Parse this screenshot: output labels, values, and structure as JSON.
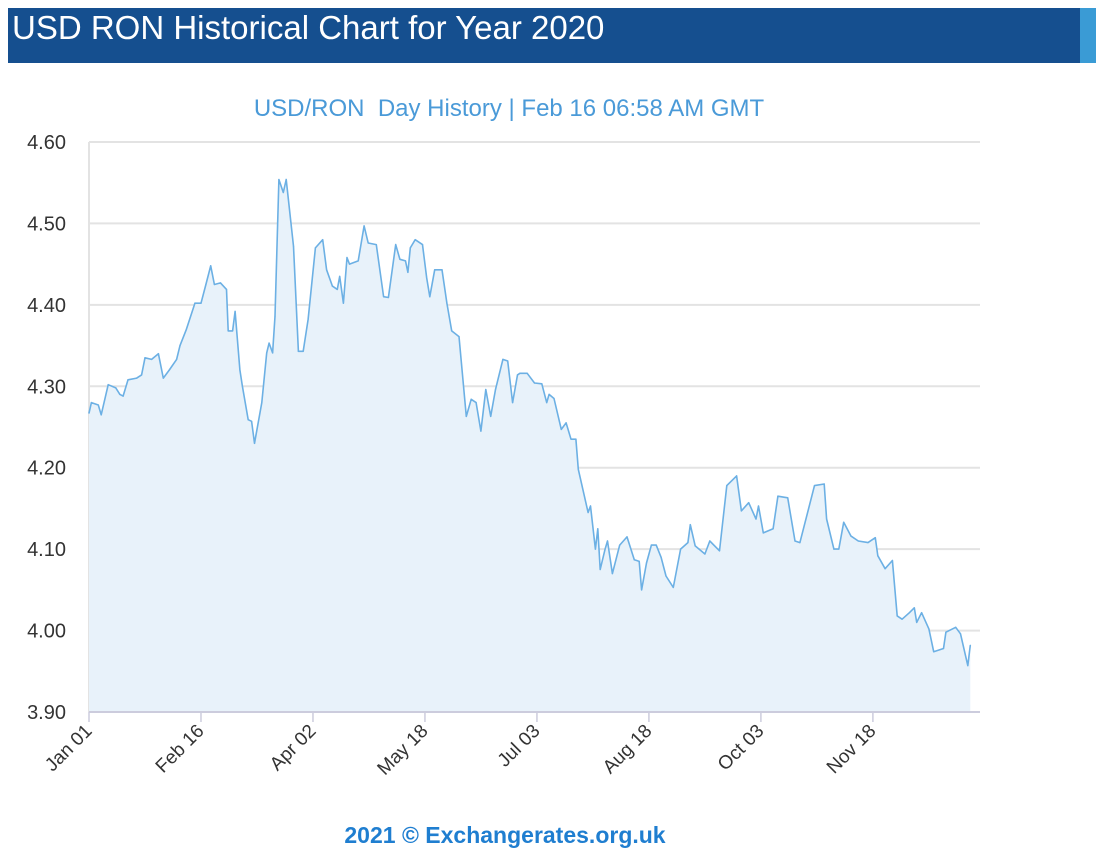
{
  "header": {
    "title": "USD RON Historical Chart for Year 2020"
  },
  "footer": {
    "text": "2021 © Exchangerates.org.uk"
  },
  "colors": {
    "header": "#154f8f",
    "header_accent": "#3a9bd5",
    "line": "#6cb0e4",
    "fill": "#e8f2fa",
    "title": "#4a9ad8",
    "footer": "#1f7ed0"
  },
  "chart_data": {
    "type": "area",
    "title": "USD/RON  Day History | Feb 16 06:58 AM GMT",
    "xlabel": "",
    "ylabel": "",
    "x_unit": "day of year 2020 (0 = Jan 01)",
    "xlim": [
      0,
      366
    ],
    "ylim": [
      3.9,
      4.6
    ],
    "yticks": [
      {
        "value": 3.9,
        "label": "3.90"
      },
      {
        "value": 4.0,
        "label": "4.00"
      },
      {
        "value": 4.1,
        "label": "4.10"
      },
      {
        "value": 4.2,
        "label": "4.20"
      },
      {
        "value": 4.3,
        "label": "4.30"
      },
      {
        "value": 4.4,
        "label": "4.40"
      },
      {
        "value": 4.5,
        "label": "4.50"
      },
      {
        "value": 4.6,
        "label": "4.60"
      }
    ],
    "xticks": [
      {
        "value": 0,
        "label": "Jan 01"
      },
      {
        "value": 46,
        "label": "Feb 16"
      },
      {
        "value": 92,
        "label": "Apr 02"
      },
      {
        "value": 138,
        "label": "May 18"
      },
      {
        "value": 184,
        "label": "Jul 03"
      },
      {
        "value": 230,
        "label": "Aug 18"
      },
      {
        "value": 276,
        "label": "Oct 03"
      },
      {
        "value": 322,
        "label": "Nov 18"
      }
    ],
    "grid": true,
    "legend": "none",
    "series": [
      {
        "name": "USD/RON",
        "points": [
          [
            0,
            4.267
          ],
          [
            1,
            4.28
          ],
          [
            3.8,
            4.277
          ],
          [
            5,
            4.265
          ],
          [
            7.9,
            4.302
          ],
          [
            11,
            4.298
          ],
          [
            12.7,
            4.29
          ],
          [
            14,
            4.288
          ],
          [
            16,
            4.308
          ],
          [
            19.6,
            4.31
          ],
          [
            21.6,
            4.314
          ],
          [
            23,
            4.335
          ],
          [
            25.7,
            4.333
          ],
          [
            28.5,
            4.34
          ],
          [
            30.5,
            4.31
          ],
          [
            33,
            4.32
          ],
          [
            36,
            4.333
          ],
          [
            37.4,
            4.35
          ],
          [
            40,
            4.37
          ],
          [
            43.5,
            4.402
          ],
          [
            46,
            4.402
          ],
          [
            48,
            4.425
          ],
          [
            50,
            4.448
          ],
          [
            51.5,
            4.425
          ],
          [
            54,
            4.427
          ],
          [
            56.5,
            4.419
          ],
          [
            57.2,
            4.368
          ],
          [
            59,
            4.368
          ],
          [
            60,
            4.392
          ],
          [
            62,
            4.32
          ],
          [
            63,
            4.3
          ],
          [
            65.4,
            4.259
          ],
          [
            66.8,
            4.257
          ],
          [
            68,
            4.23
          ],
          [
            71,
            4.28
          ],
          [
            73,
            4.341
          ],
          [
            74,
            4.353
          ],
          [
            75.4,
            4.341
          ],
          [
            76.4,
            4.386
          ],
          [
            78,
            4.554
          ],
          [
            79.8,
            4.538
          ],
          [
            81,
            4.554
          ],
          [
            84,
            4.472
          ],
          [
            86,
            4.343
          ],
          [
            88,
            4.343
          ],
          [
            90,
            4.382
          ],
          [
            93,
            4.47
          ],
          [
            96,
            4.48
          ],
          [
            97.6,
            4.443
          ],
          [
            100,
            4.423
          ],
          [
            102,
            4.419
          ],
          [
            103,
            4.435
          ],
          [
            104.5,
            4.402
          ],
          [
            106,
            4.458
          ],
          [
            107,
            4.45
          ],
          [
            110.6,
            4.454
          ],
          [
            113,
            4.497
          ],
          [
            114.7,
            4.476
          ],
          [
            118,
            4.474
          ],
          [
            121,
            4.41
          ],
          [
            123,
            4.409
          ],
          [
            126,
            4.474
          ],
          [
            127.7,
            4.456
          ],
          [
            130,
            4.454
          ],
          [
            131,
            4.44
          ],
          [
            132,
            4.47
          ],
          [
            134,
            4.48
          ],
          [
            137,
            4.474
          ],
          [
            138.7,
            4.433
          ],
          [
            140,
            4.41
          ],
          [
            142,
            4.443
          ],
          [
            145,
            4.443
          ],
          [
            147,
            4.402
          ],
          [
            149,
            4.368
          ],
          [
            152,
            4.361
          ],
          [
            155,
            4.263
          ],
          [
            157,
            4.284
          ],
          [
            159,
            4.28
          ],
          [
            161,
            4.245
          ],
          [
            163,
            4.296
          ],
          [
            165,
            4.263
          ],
          [
            167,
            4.296
          ],
          [
            170,
            4.333
          ],
          [
            172,
            4.331
          ],
          [
            174,
            4.28
          ],
          [
            176,
            4.314
          ],
          [
            177,
            4.316
          ],
          [
            180,
            4.316
          ],
          [
            183,
            4.304
          ],
          [
            186,
            4.303
          ],
          [
            188,
            4.28
          ],
          [
            189,
            4.29
          ],
          [
            191,
            4.285
          ],
          [
            194,
            4.247
          ],
          [
            196,
            4.255
          ],
          [
            198,
            4.235
          ],
          [
            200,
            4.235
          ],
          [
            201,
            4.198
          ],
          [
            205,
            4.145
          ],
          [
            206,
            4.153
          ],
          [
            208,
            4.1
          ],
          [
            209,
            4.125
          ],
          [
            210,
            4.075
          ],
          [
            212,
            4.1
          ],
          [
            213,
            4.11
          ],
          [
            215,
            4.07
          ],
          [
            218,
            4.105
          ],
          [
            221,
            4.115
          ],
          [
            224,
            4.087
          ],
          [
            226,
            4.085
          ],
          [
            227,
            4.05
          ],
          [
            229,
            4.083
          ],
          [
            231,
            4.105
          ],
          [
            233,
            4.105
          ],
          [
            235,
            4.09
          ],
          [
            237,
            4.067
          ],
          [
            240,
            4.053
          ],
          [
            243,
            4.1
          ],
          [
            246,
            4.108
          ],
          [
            247,
            4.13
          ],
          [
            249,
            4.104
          ],
          [
            253,
            4.094
          ],
          [
            255,
            4.11
          ],
          [
            259,
            4.098
          ],
          [
            262,
            4.178
          ],
          [
            266,
            4.19
          ],
          [
            268,
            4.147
          ],
          [
            271,
            4.157
          ],
          [
            274,
            4.137
          ],
          [
            275,
            4.153
          ],
          [
            277,
            4.12
          ],
          [
            281,
            4.125
          ],
          [
            283,
            4.165
          ],
          [
            287,
            4.163
          ],
          [
            290,
            4.11
          ],
          [
            292,
            4.108
          ],
          [
            298,
            4.178
          ],
          [
            302,
            4.18
          ],
          [
            303,
            4.137
          ],
          [
            306,
            4.1
          ],
          [
            308,
            4.1
          ],
          [
            310,
            4.133
          ],
          [
            313,
            4.116
          ],
          [
            316,
            4.11
          ],
          [
            320,
            4.108
          ],
          [
            323,
            4.114
          ],
          [
            324,
            4.092
          ],
          [
            327,
            4.076
          ],
          [
            330,
            4.086
          ],
          [
            332,
            4.018
          ],
          [
            334,
            4.014
          ],
          [
            337,
            4.022
          ],
          [
            339,
            4.028
          ],
          [
            340,
            4.01
          ],
          [
            342,
            4.022
          ],
          [
            345,
            4.002
          ],
          [
            347,
            3.974
          ],
          [
            351,
            3.978
          ],
          [
            352,
            3.998
          ],
          [
            356,
            4.004
          ],
          [
            358,
            3.996
          ],
          [
            361,
            3.957
          ],
          [
            362,
            3.982
          ]
        ]
      }
    ]
  }
}
